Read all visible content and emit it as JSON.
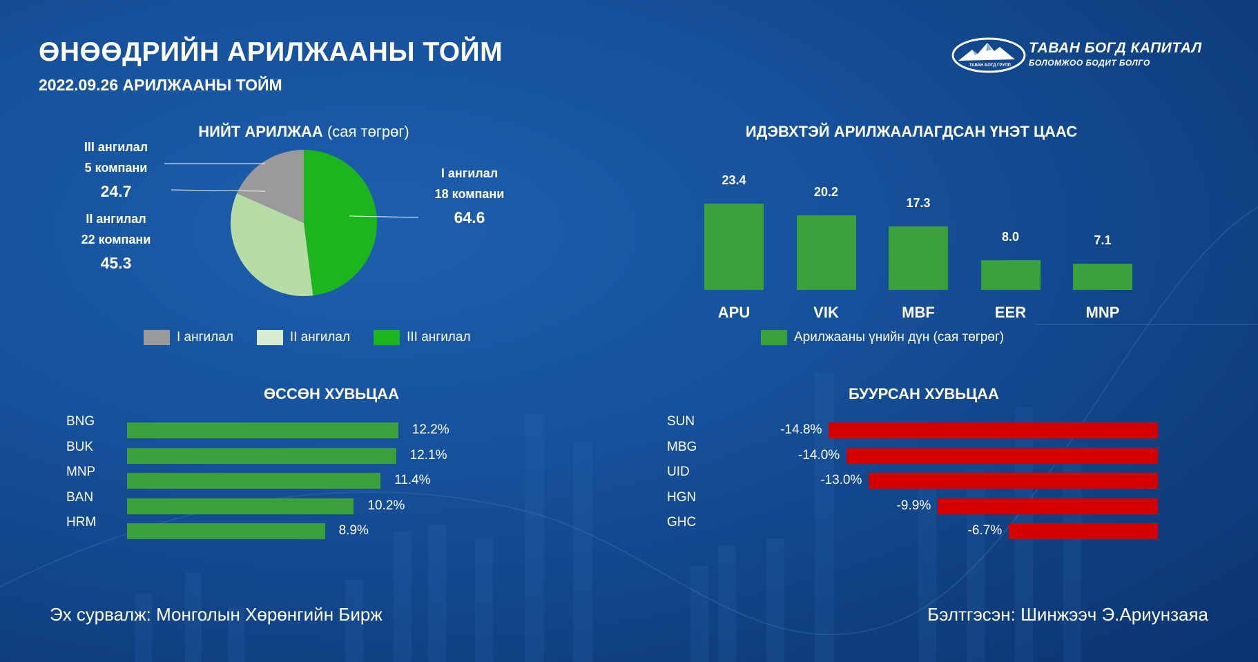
{
  "header": {
    "title": "ӨНӨӨДРИЙН АРИЛЖААНЫ ТОЙМ",
    "subtitle": "2022.09.26 АРИЛЖААНЫ ТОЙМ"
  },
  "logo": {
    "name": "ТАВАН БОГД КАПИТАЛ",
    "tagline": "БОЛОМЖОО БОДИТ БОЛГО",
    "emblem_text": "ТАВАН БОГД ГРУПП"
  },
  "colors": {
    "green": "#39a03a",
    "light_green": "#b7dca6",
    "bright_green": "#1db51d",
    "gray": "#9a9a9a",
    "red": "#d40000"
  },
  "chart_data": [
    {
      "type": "pie",
      "title_bold": "НИЙТ АРИЛЖАА",
      "title_light": "(сая төгрөг)",
      "slices": [
        {
          "label": "I ангилал",
          "companies": "18 компани",
          "value": 64.6
        },
        {
          "label": "II ангилал",
          "companies": "22 компани",
          "value": 45.3
        },
        {
          "label": "III ангилал",
          "companies": "5 компани",
          "value": 24.7
        }
      ],
      "legend": [
        "I ангилал",
        "II ангилал",
        "III ангилал"
      ]
    },
    {
      "type": "bar",
      "title": "ИДЭВХТЭЙ АРИЛЖААЛАГДСАН ҮНЭТ ЦААС",
      "categories": [
        "APU",
        "VIK",
        "MBF",
        "EER",
        "MNP"
      ],
      "values": [
        23.4,
        20.2,
        17.3,
        8.0,
        7.1
      ],
      "value_labels": [
        "23.4",
        "20.2",
        "17.3",
        "8.0",
        "7.1"
      ],
      "legend": "Арилжааны үнийн дүн (сая төгрөг)"
    },
    {
      "type": "bar",
      "orientation": "horizontal",
      "title": "ӨССӨН ХУВЬЦАА",
      "categories": [
        "BNG",
        "BUK",
        "MNP",
        "BAN",
        "HRM"
      ],
      "values": [
        12.2,
        12.1,
        11.4,
        10.2,
        8.9
      ],
      "value_labels": [
        "12.2%",
        "12.1%",
        "11.4%",
        "10.2%",
        "8.9%"
      ]
    },
    {
      "type": "bar",
      "orientation": "horizontal",
      "title": "БУУРСАН ХУВЬЦАА",
      "categories": [
        "SUN",
        "MBG",
        "UID",
        "HGN",
        "GHC"
      ],
      "values": [
        -14.8,
        -14.0,
        -13.0,
        -9.9,
        -6.7
      ],
      "value_labels": [
        "-14.8%",
        "-14.0%",
        "-13.0%",
        "-9.9%",
        "-6.7%"
      ]
    }
  ],
  "footer": {
    "source": "Эх сурвалж: Монголын Хөрөнгийн Бирж",
    "author": "Бэлтгэсэн: Шинжээч Э.Ариунзаяа"
  }
}
